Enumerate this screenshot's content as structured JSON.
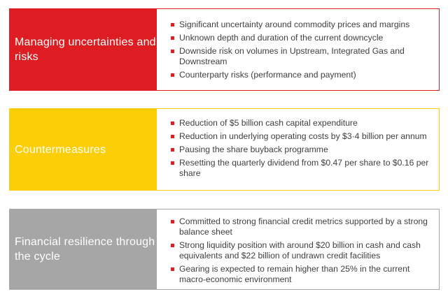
{
  "colors": {
    "red": "#dd1d21",
    "yellow": "#fbce07",
    "grey": "#a6a6a6",
    "text": "#404040",
    "bullet": "#dd1d21"
  },
  "panels": [
    {
      "title": "Managing uncertainties and risks",
      "bullets": [
        "Significant uncertainty around commodity prices and margins",
        "Unknown depth and duration of the current downcycle",
        "Downside risk on volumes in Upstream, Integrated Gas and Downstream",
        "Counterparty risks (performance and payment)"
      ]
    },
    {
      "title": "Countermeasures",
      "bullets": [
        "Reduction of $5 billion cash capital expenditure",
        "Reduction in underlying operating costs by $3·4 billion per annum",
        "Pausing the share buyback programme",
        "Resetting the quarterly dividend from $0.47 per share to $0.16 per share"
      ]
    },
    {
      "title": "Financial resilience through the cycle",
      "bullets": [
        "Committed to strong financial credit metrics supported by a strong balance sheet",
        "Strong liquidity position with around $20 billion in cash and cash equivalents and $22 billion of undrawn credit facilities",
        "Gearing is expected to remain higher than 25% in the current macro-economic environment"
      ]
    }
  ]
}
